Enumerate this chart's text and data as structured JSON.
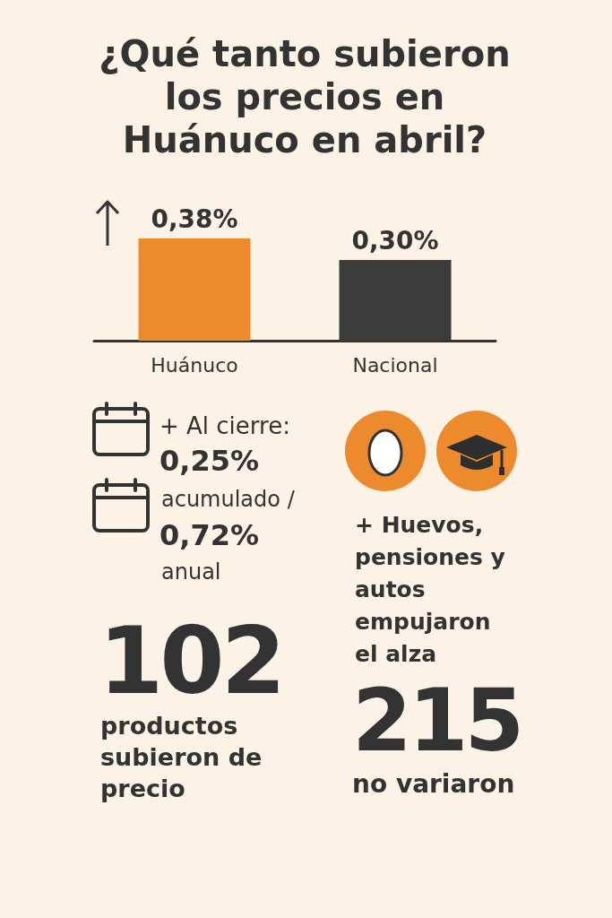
{
  "chart_data": {
    "type": "bar",
    "title": "¿Qué tanto subieron los precios en Huánuco en abril?",
    "categories": [
      "Huánuco",
      "Nacional"
    ],
    "values": [
      0.38,
      0.3
    ],
    "colors": [
      "#ee8a2e",
      "#3b3b3b"
    ],
    "value_labels": [
      "0,38%",
      "0,30%"
    ],
    "annotations": [
      "+ Al cierre:",
      "0,25%",
      "acumulado /",
      "0,72%",
      "anual",
      "+ Huevos, pensiones y autos empujaron el alza",
      "102",
      "productos subieron de precio",
      "215",
      "no variaron"
    ]
  }
}
